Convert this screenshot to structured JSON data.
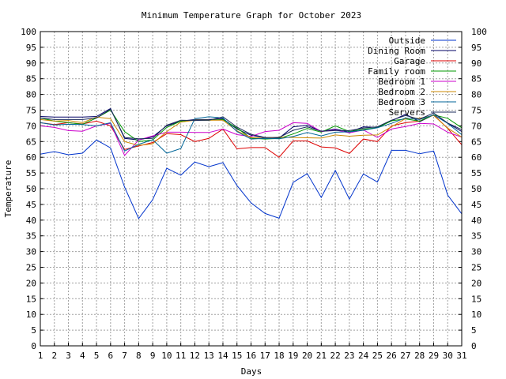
{
  "chart_data": {
    "type": "line",
    "title": "Minimum Temperature Graph for October 2023",
    "xlabel": "Days",
    "ylabel": "Temperature",
    "x": [
      1,
      2,
      3,
      4,
      5,
      6,
      7,
      8,
      9,
      10,
      11,
      12,
      13,
      14,
      15,
      16,
      17,
      18,
      19,
      20,
      21,
      22,
      23,
      24,
      25,
      26,
      27,
      28,
      29,
      30,
      31
    ],
    "xlim": [
      1,
      31
    ],
    "ylim": [
      0,
      100
    ],
    "yticks": [
      0,
      5,
      10,
      15,
      20,
      25,
      30,
      35,
      40,
      45,
      50,
      55,
      60,
      65,
      70,
      75,
      80,
      85,
      90,
      95,
      100
    ],
    "grid": true,
    "legend_position": "top-right",
    "series": [
      {
        "name": "Outside",
        "color": "#0033cc",
        "values": [
          61,
          61.8,
          60.8,
          61.3,
          65.5,
          63,
          50.5,
          40.5,
          46.5,
          56.5,
          54.3,
          58.5,
          57,
          58.3,
          51,
          45.5,
          42.1,
          40.6,
          52,
          54.8,
          47.2,
          55.8,
          46.7,
          54.7,
          52.1,
          62.2,
          62.2,
          61.1,
          62,
          48,
          42
        ]
      },
      {
        "name": "Dining Room",
        "color": "#000066",
        "values": [
          73,
          72.8,
          72.8,
          72.8,
          73,
          75.5,
          66,
          65.5,
          66.5,
          70,
          71.5,
          72,
          72,
          72.3,
          69,
          67,
          66.2,
          66.1,
          69.7,
          70.2,
          68.3,
          69,
          68,
          69.7,
          69.5,
          71.6,
          73.7,
          71.3,
          73.5,
          70.9,
          68.2
        ]
      },
      {
        "name": "Garage",
        "color": "#dd0000",
        "values": [
          71,
          70.4,
          71,
          70.6,
          71.5,
          70,
          62.5,
          63.6,
          64.7,
          67.5,
          67.2,
          65,
          66,
          69,
          62.7,
          63.1,
          63.1,
          60,
          65.2,
          65.2,
          63.3,
          63,
          61.2,
          65.8,
          65,
          70,
          71,
          71.5,
          73.5,
          69.2,
          64
        ]
      },
      {
        "name": "Family room",
        "color": "#009900",
        "values": [
          72.5,
          71.5,
          71,
          70.5,
          72.5,
          75,
          68.2,
          65,
          65.5,
          69.5,
          71.5,
          71.8,
          71.8,
          72,
          69.3,
          66.1,
          65.8,
          66,
          67.4,
          69.2,
          68,
          70,
          68.2,
          68.9,
          69.4,
          71.6,
          72.2,
          71.5,
          73.5,
          72.4,
          69.4
        ]
      },
      {
        "name": "Bedroom 1",
        "color": "#cc00cc",
        "values": [
          70,
          69.5,
          68.5,
          68.3,
          70,
          70.8,
          60.6,
          65.5,
          66.8,
          68,
          68,
          67.9,
          67.9,
          69,
          67.2,
          66.6,
          68.2,
          68.6,
          71,
          70.8,
          68.2,
          68.7,
          67.8,
          68.7,
          66.3,
          69,
          69.8,
          70.8,
          70.6,
          68,
          66.4
        ]
      },
      {
        "name": "Bedroom 2",
        "color": "#cc8800",
        "values": [
          72,
          71.5,
          71.7,
          71,
          72.8,
          72.3,
          65,
          63.8,
          64.3,
          68.2,
          71.2,
          71.8,
          71.8,
          71.8,
          68.4,
          66.3,
          66,
          66.4,
          66.3,
          66.2,
          66.1,
          67.1,
          66.7,
          67,
          67.1,
          69.7,
          72.3,
          72.4,
          73.3,
          69.3,
          66.4
        ]
      },
      {
        "name": "Bedroom 3",
        "color": "#006699",
        "values": [
          71,
          70.3,
          70.5,
          70.4,
          70,
          71,
          62,
          64.1,
          65.6,
          61.3,
          62.8,
          72.3,
          72.9,
          72.5,
          68.2,
          65.8,
          66,
          65.9,
          66.6,
          67.9,
          66.8,
          68,
          68.1,
          68.6,
          69.4,
          70.8,
          72.5,
          72,
          73.5,
          70.8,
          67.2
        ]
      },
      {
        "name": "Servers",
        "color": "#1a2a5a",
        "values": [
          72.5,
          72,
          72,
          72,
          72.5,
          75.3,
          66.3,
          65.9,
          66,
          70.2,
          71.8,
          71.7,
          71.8,
          72.9,
          69.6,
          67.3,
          66.3,
          66.3,
          68.6,
          69.7,
          68.3,
          68.5,
          68.5,
          69.3,
          69.7,
          71.8,
          73.3,
          72.1,
          74.1,
          70.9,
          68.8
        ]
      }
    ]
  }
}
